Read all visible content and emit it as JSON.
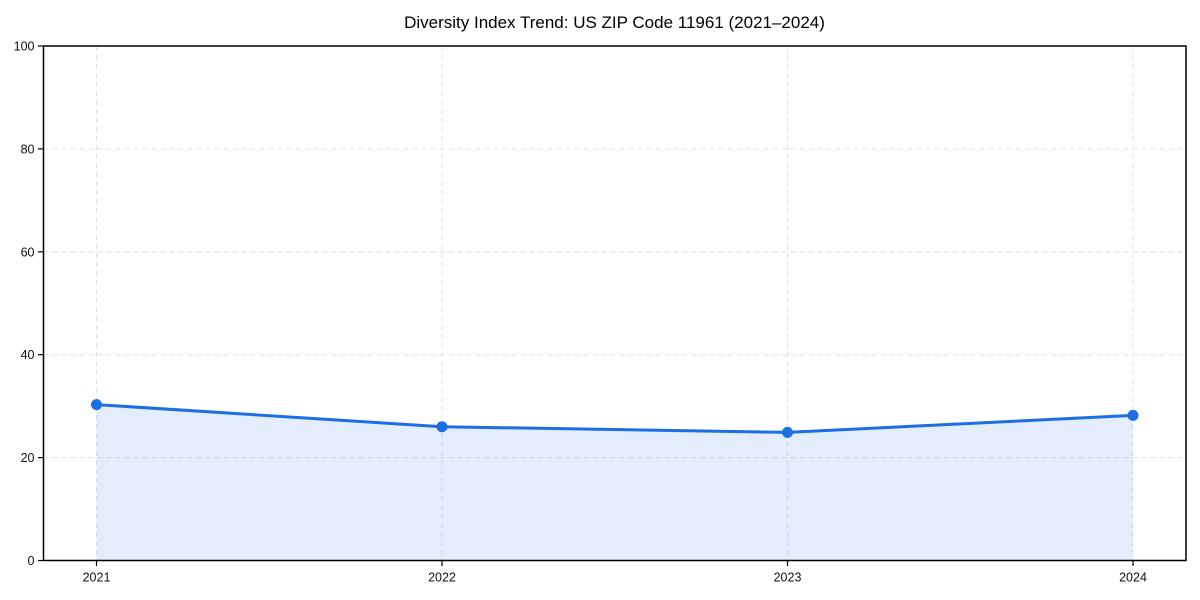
{
  "chart_data": {
    "type": "area",
    "title": "Diversity Index Trend: US ZIP Code 11961 (2021–2024)",
    "categories": [
      "2021",
      "2022",
      "2023",
      "2024"
    ],
    "series": [
      {
        "name": "Diversity Index",
        "values": [
          30.3,
          26.0,
          24.9,
          28.2
        ]
      }
    ],
    "xlabel": "",
    "ylabel": "",
    "ylim": [
      0,
      100
    ],
    "yticks": [
      0,
      20,
      40,
      60,
      80,
      100
    ],
    "grid": "dashed, horizontal and vertical",
    "legend": "none",
    "marker": "circle",
    "colors": {
      "line": "#1b6ee3",
      "marker": "#1b6ee3",
      "fill": "#1b6ee3",
      "fill_opacity": 0.12,
      "grid": "#e0e0e0",
      "axis": "#000000",
      "text": "#111111",
      "background": "#ffffff"
    }
  }
}
